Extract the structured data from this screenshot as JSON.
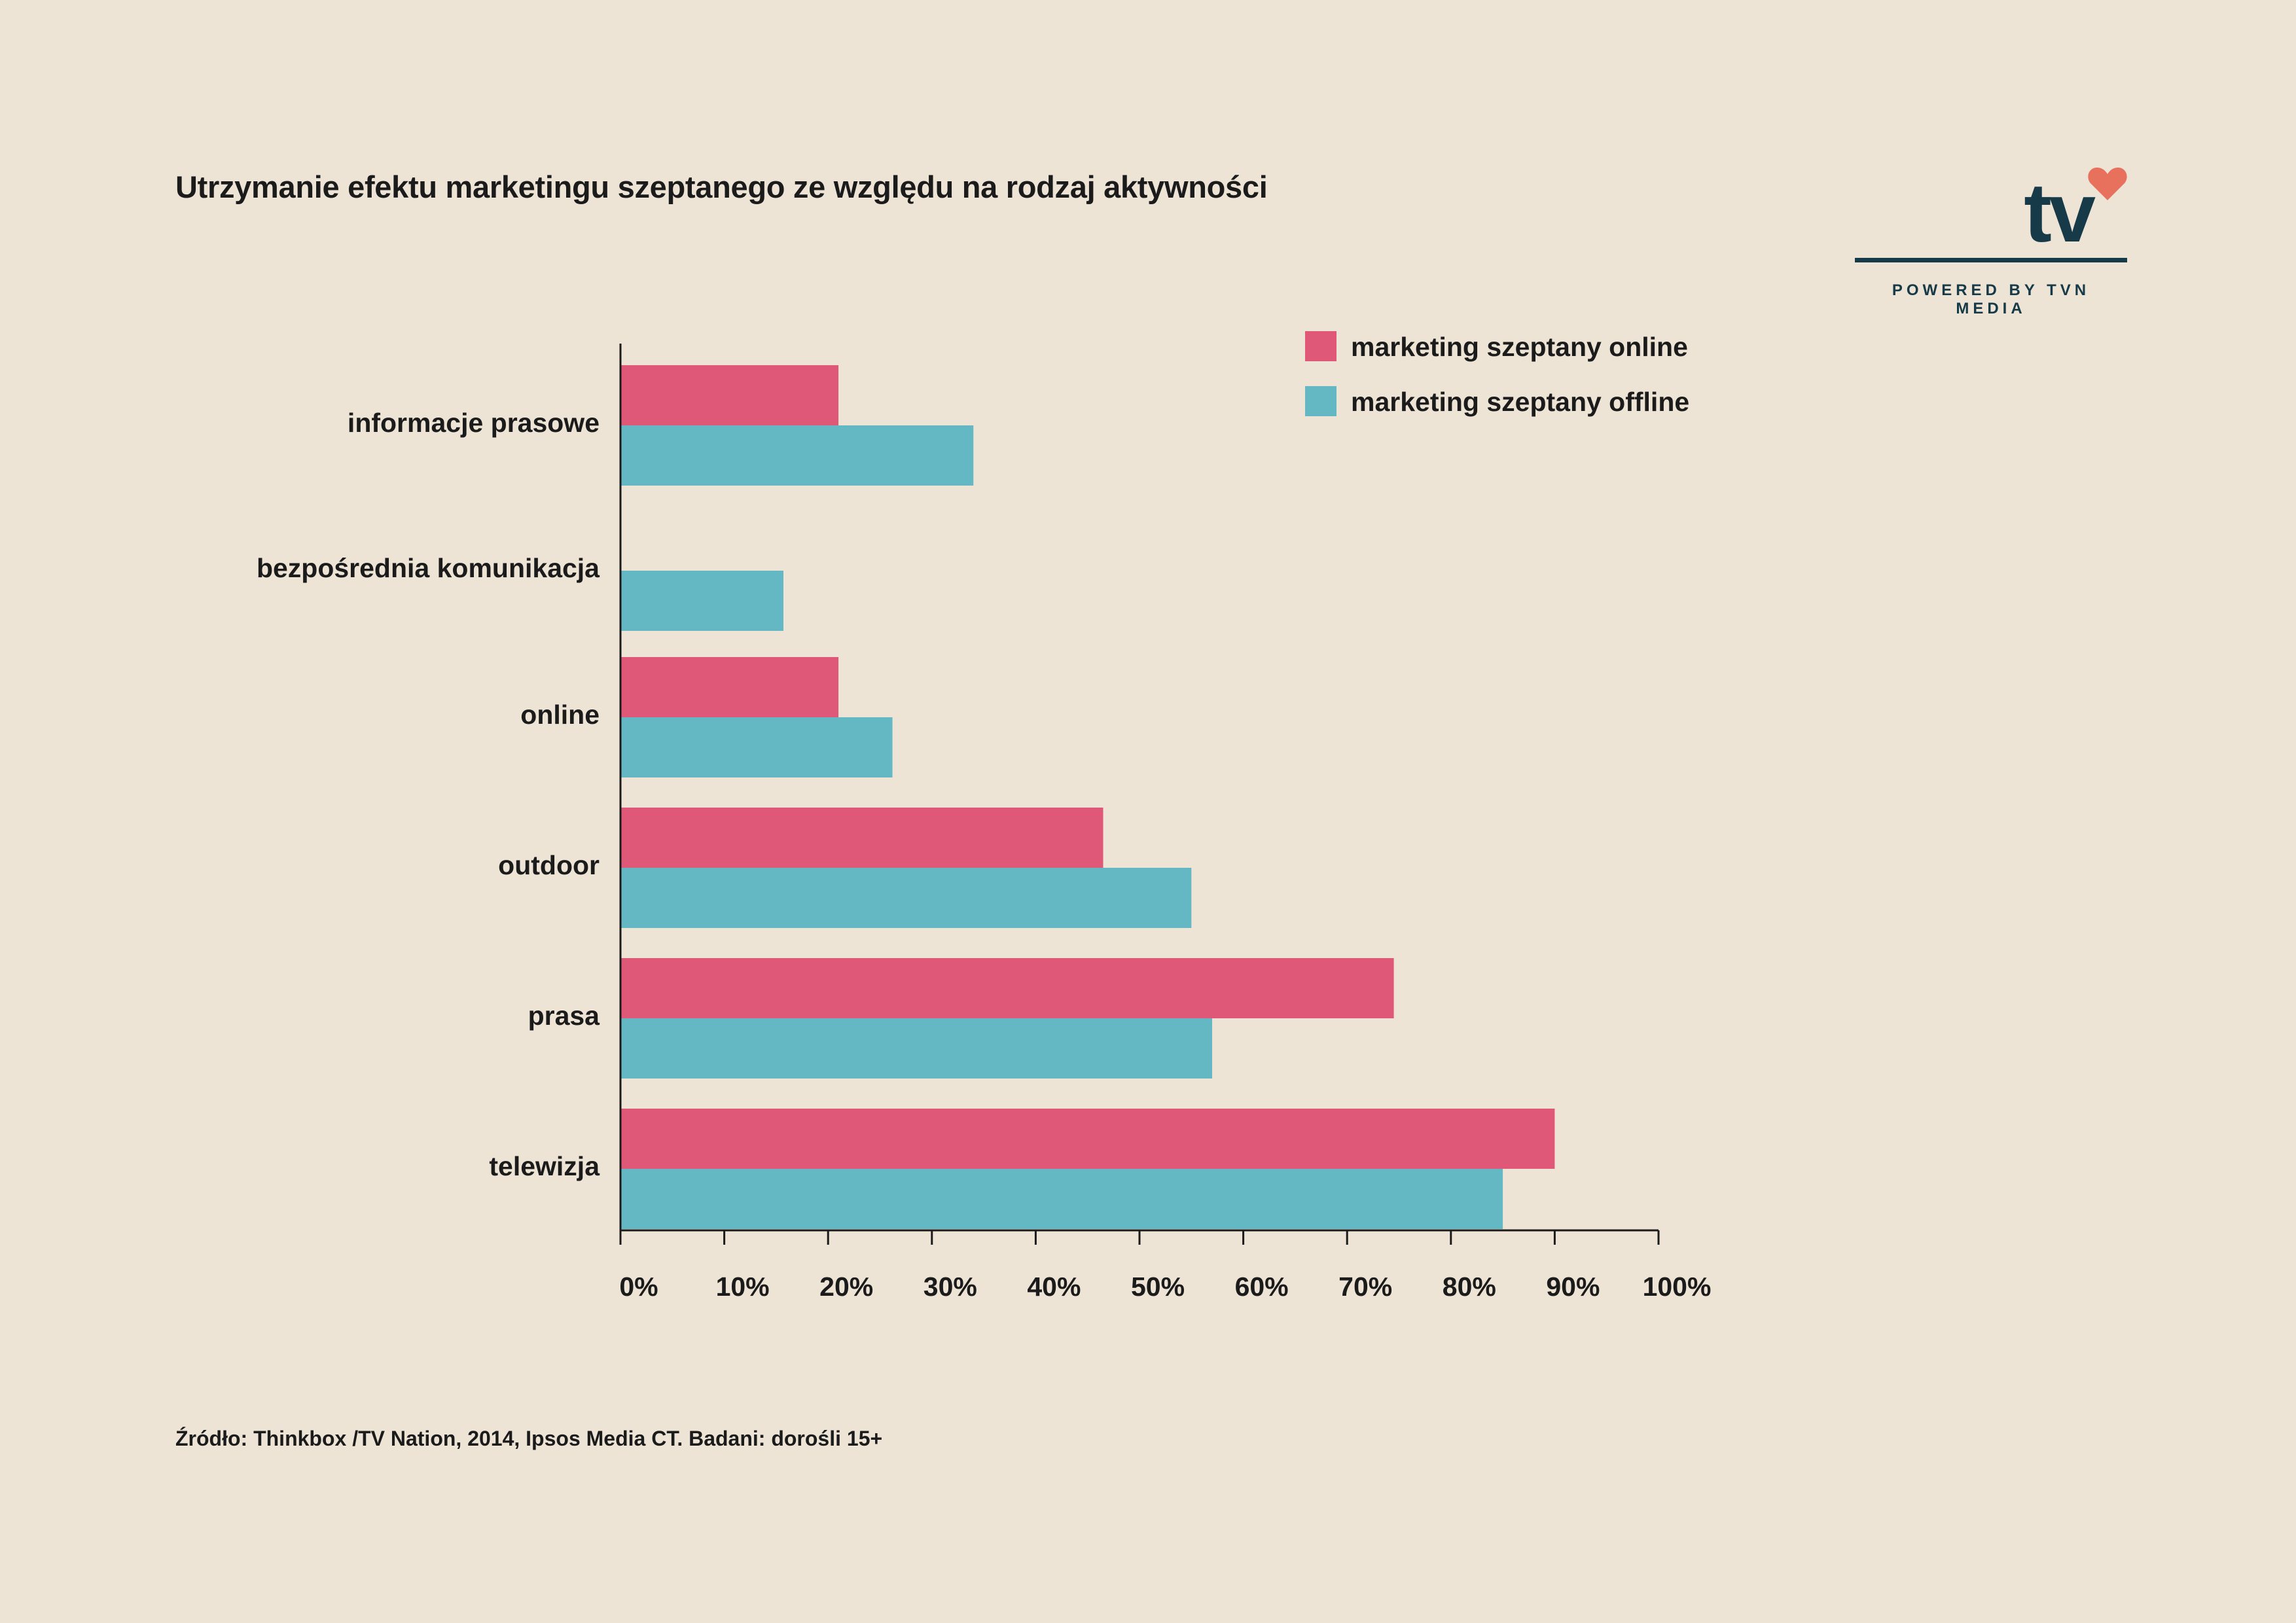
{
  "title": "Utrzymanie efektu marketingu szeptanego ze względu na rodzaj aktywności",
  "logo": {
    "text": "tv",
    "tagline": "POWERED BY TVN MEDIA",
    "heart_color": "#e8715e",
    "brand_color": "#163a47"
  },
  "source": "Źródło: Thinkbox /TV Nation, 2014, Ipsos Media CT. Badani: dorośli 15+",
  "chart_data": {
    "type": "bar",
    "orientation": "horizontal",
    "title": "Utrzymanie efektu marketingu szeptanego ze względu na rodzaj aktywności",
    "categories": [
      "informacje prasowe",
      "bezpośrednia komunikacja",
      "online",
      "outdoor",
      "prasa",
      "telewizja"
    ],
    "series": [
      {
        "name": "marketing szeptany online",
        "color": "#e05878",
        "values": [
          21,
          null,
          21,
          46.5,
          74.5,
          90
        ]
      },
      {
        "name": "marketing szeptany offline",
        "color": "#63b8c3",
        "values": [
          34,
          15.7,
          26.2,
          55,
          57,
          85
        ]
      }
    ],
    "xlim": [
      0,
      100
    ],
    "xticks": [
      "0%",
      "10%",
      "20%",
      "30%",
      "40%",
      "50%",
      "60%",
      "70%",
      "80%",
      "90%",
      "100%"
    ],
    "grid": false,
    "legend": "top-right"
  }
}
